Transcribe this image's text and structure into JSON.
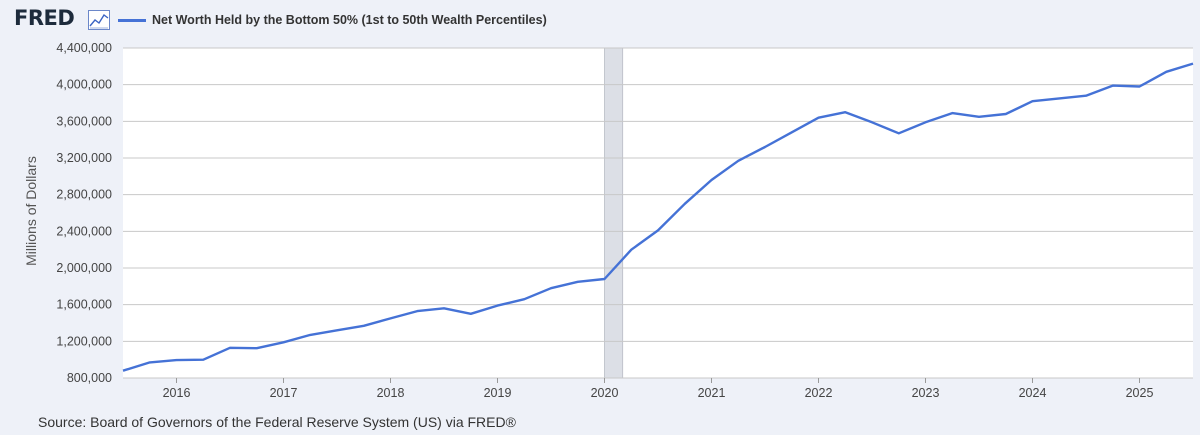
{
  "brand": {
    "logo_text": "FRED",
    "logo_icon": "chart-trend-icon"
  },
  "source_text": "Source: Board of Governors of the Federal Reserve System (US) via FRED®",
  "colors": {
    "series": "#4572d6",
    "recession": "#dcdfe6",
    "grid": "#c8c8c8",
    "background": "#eef1f8"
  },
  "chart_data": {
    "type": "line",
    "title": "",
    "xlabel": "",
    "ylabel": "Millions of Dollars",
    "ylim": [
      800000,
      4400000
    ],
    "xlim": [
      2015.5,
      2025.5
    ],
    "y_ticks": [
      "4,400,000",
      "4,000,000",
      "3,600,000",
      "3,200,000",
      "2,800,000",
      "2,400,000",
      "2,000,000",
      "1,600,000",
      "1,200,000",
      "800,000"
    ],
    "y_tick_values": [
      4400000,
      4000000,
      3600000,
      3200000,
      2800000,
      2400000,
      2000000,
      1600000,
      1200000,
      800000
    ],
    "x_ticks": [
      "2016",
      "2017",
      "2018",
      "2019",
      "2020",
      "2021",
      "2022",
      "2023",
      "2024",
      "2025"
    ],
    "x_tick_values": [
      2016,
      2017,
      2018,
      2019,
      2020,
      2021,
      2022,
      2023,
      2024,
      2025
    ],
    "grid": true,
    "legend": "top-left",
    "recession": {
      "start": 2020.0,
      "end": 2020.17
    },
    "series": [
      {
        "name": "Net Worth Held by the Bottom 50% (1st to 50th Wealth Percentiles)",
        "x": [
          2015.5,
          2015.75,
          2016.0,
          2016.25,
          2016.5,
          2016.75,
          2017.0,
          2017.25,
          2017.5,
          2017.75,
          2018.0,
          2018.25,
          2018.5,
          2018.75,
          2019.0,
          2019.25,
          2019.5,
          2019.75,
          2020.0,
          2020.25,
          2020.5,
          2020.75,
          2021.0,
          2021.25,
          2021.5,
          2021.75,
          2022.0,
          2022.25,
          2022.5,
          2022.75,
          2023.0,
          2023.25,
          2023.5,
          2023.75,
          2024.0,
          2024.25,
          2024.5,
          2024.75,
          2025.0,
          2025.25,
          2025.5
        ],
        "y": [
          880000,
          970000,
          995000,
          1000000,
          1130000,
          1125000,
          1190000,
          1270000,
          1320000,
          1370000,
          1450000,
          1530000,
          1560000,
          1500000,
          1590000,
          1660000,
          1780000,
          1850000,
          1880000,
          2200000,
          2410000,
          2700000,
          2960000,
          3170000,
          3320000,
          3480000,
          3640000,
          3700000,
          3590000,
          3470000,
          3590000,
          3690000,
          3650000,
          3680000,
          3820000,
          3850000,
          3880000,
          3990000,
          3980000,
          4140000,
          4230000
        ]
      }
    ]
  }
}
